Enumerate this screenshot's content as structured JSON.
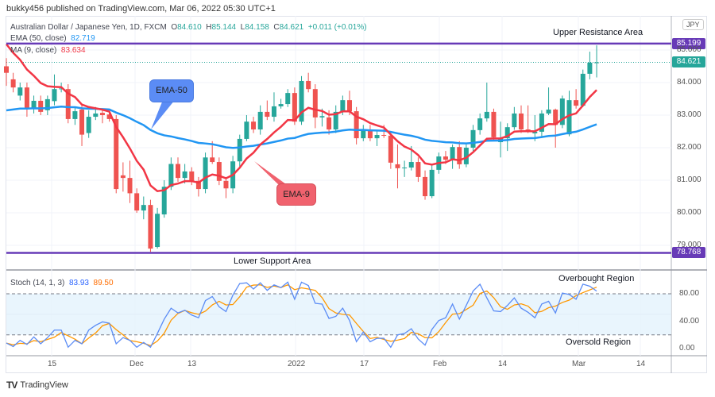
{
  "publisher_line": "bukky456 published on TradingView.com, Mar 06, 2022 05:30 UTC+1",
  "header": {
    "symbol": "Australian Dollar / Japanese Yen, 1D, FXCM",
    "o_label": "O",
    "o": "84.610",
    "h_label": "H",
    "h": "85.144",
    "l_label": "L",
    "l": "84.158",
    "c_label": "C",
    "c": "84.621",
    "change": "+0.011 (+0.01%)"
  },
  "indicators": {
    "ema": {
      "label": "EMA (50, close)",
      "value": "82.719",
      "color": "#2196f3"
    },
    "ma": {
      "label": "MA (9, close)",
      "value": "83.634",
      "color": "#f23645"
    },
    "stoch": {
      "label": "Stoch (14, 1, 3)",
      "k": "83.93",
      "d": "89.50",
      "k_color": "#2962ff",
      "d_color": "#ff6d00"
    }
  },
  "currency_button": "JPY",
  "price_axis": {
    "ticks": [
      "85.000",
      "84.000",
      "83.000",
      "82.000",
      "81.000",
      "80.000",
      "79.000"
    ],
    "tick_values": [
      85,
      84,
      83,
      82,
      81,
      80,
      79
    ],
    "resistance_tag": "85.199",
    "resistance_value": 85.199,
    "last_price_tag": "84.621",
    "last_price_value": 84.621,
    "support_tag": "78.768",
    "support_value": 78.768
  },
  "stoch_axis": {
    "ticks": [
      "80.00",
      "40.00",
      "0.00"
    ],
    "tick_values": [
      80,
      40,
      0
    ]
  },
  "time_axis": [
    "15",
    "Dec",
    "13",
    "2022",
    "17",
    "Feb",
    "14",
    "Mar",
    "14"
  ],
  "annotations": {
    "upper": "Upper Resistance Area",
    "lower": "Lower Support Area",
    "overbought": "Overbought Region",
    "oversold": "Oversold Region",
    "ema50_callout": "EMA-50",
    "ema9_callout": "EMA-9"
  },
  "colors": {
    "up": "#26a69a",
    "down": "#ef5350",
    "level": "#673ab7",
    "band": "#e3f2fd"
  },
  "chart_data": {
    "type": "candlestick",
    "ohlc_format": [
      "open",
      "high",
      "low",
      "close"
    ],
    "candles": [
      [
        84.5,
        84.75,
        83.9,
        84.3
      ],
      [
        84.1,
        84.3,
        83.7,
        83.85
      ],
      [
        83.6,
        84.0,
        83.45,
        83.85
      ],
      [
        83.85,
        84.0,
        82.95,
        83.2
      ],
      [
        83.2,
        83.6,
        83.05,
        83.44
      ],
      [
        83.44,
        83.6,
        83.0,
        83.1
      ],
      [
        83.15,
        83.6,
        83.0,
        83.49
      ],
      [
        83.43,
        84.25,
        83.3,
        83.8
      ],
      [
        83.8,
        84.0,
        83.7,
        83.82
      ],
      [
        83.8,
        83.95,
        82.75,
        82.88
      ],
      [
        82.88,
        83.25,
        82.7,
        83.12
      ],
      [
        83.17,
        83.3,
        82.05,
        82.4
      ],
      [
        82.45,
        83.15,
        82.3,
        82.95
      ],
      [
        82.95,
        83.25,
        82.85,
        83.05
      ],
      [
        83.07,
        83.2,
        82.75,
        83.0
      ],
      [
        83.02,
        83.1,
        82.8,
        82.88
      ],
      [
        82.88,
        83.0,
        80.6,
        80.73
      ],
      [
        81.15,
        81.55,
        80.65,
        81.07
      ],
      [
        81.07,
        81.6,
        80.3,
        80.6
      ],
      [
        80.6,
        80.75,
        80.0,
        80.07
      ],
      [
        80.07,
        80.5,
        79.8,
        80.24
      ],
      [
        80.24,
        80.4,
        78.8,
        78.9
      ],
      [
        78.95,
        80.15,
        78.9,
        79.97
      ],
      [
        79.95,
        81.0,
        79.85,
        80.8
      ],
      [
        80.8,
        81.7,
        80.7,
        81.5
      ],
      [
        81.5,
        81.7,
        80.95,
        81.07
      ],
      [
        81.07,
        81.5,
        80.9,
        81.27
      ],
      [
        81.27,
        81.4,
        80.85,
        80.98
      ],
      [
        80.98,
        81.1,
        80.5,
        80.73
      ],
      [
        80.73,
        81.85,
        80.6,
        81.7
      ],
      [
        81.7,
        82.2,
        81.5,
        81.56
      ],
      [
        81.56,
        81.7,
        80.85,
        80.98
      ],
      [
        80.98,
        81.1,
        80.45,
        80.75
      ],
      [
        80.75,
        81.75,
        80.6,
        81.58
      ],
      [
        81.58,
        82.4,
        81.4,
        82.27
      ],
      [
        82.27,
        83.0,
        82.2,
        82.8
      ],
      [
        82.8,
        82.95,
        82.45,
        82.56
      ],
      [
        82.56,
        83.3,
        82.4,
        83.1
      ],
      [
        83.1,
        83.45,
        82.85,
        82.95
      ],
      [
        82.95,
        83.7,
        82.8,
        83.27
      ],
      [
        83.27,
        83.5,
        83.2,
        83.34
      ],
      [
        83.34,
        83.8,
        83.25,
        83.68
      ],
      [
        83.68,
        83.85,
        82.7,
        82.8
      ],
      [
        82.8,
        84.2,
        82.7,
        84.05
      ],
      [
        84.05,
        84.3,
        83.7,
        83.8
      ],
      [
        83.8,
        83.95,
        82.6,
        82.93
      ],
      [
        82.93,
        83.2,
        82.65,
        82.97
      ],
      [
        82.93,
        83.15,
        82.4,
        82.56
      ],
      [
        82.56,
        83.3,
        82.45,
        83.1
      ],
      [
        83.1,
        83.6,
        83.0,
        83.46
      ],
      [
        83.46,
        83.75,
        83.0,
        83.12
      ],
      [
        83.12,
        83.25,
        82.1,
        82.29
      ],
      [
        82.29,
        82.7,
        82.2,
        82.56
      ],
      [
        82.56,
        82.7,
        82.2,
        82.29
      ],
      [
        82.29,
        82.5,
        82.05,
        82.39
      ],
      [
        82.39,
        82.7,
        82.3,
        82.37
      ],
      [
        82.37,
        82.45,
        81.35,
        81.54
      ],
      [
        81.49,
        82.1,
        80.75,
        81.37
      ],
      [
        81.37,
        81.6,
        81.1,
        81.39
      ],
      [
        81.39,
        82.05,
        81.3,
        81.56
      ],
      [
        81.56,
        81.7,
        80.95,
        81.1
      ],
      [
        81.1,
        81.3,
        80.4,
        80.51
      ],
      [
        80.51,
        81.45,
        80.45,
        81.32
      ],
      [
        81.32,
        81.85,
        81.2,
        81.73
      ],
      [
        81.73,
        81.9,
        81.5,
        81.63
      ],
      [
        81.63,
        82.1,
        81.35,
        82.02
      ],
      [
        82.02,
        82.2,
        81.35,
        81.49
      ],
      [
        81.49,
        82.1,
        81.4,
        82.0
      ],
      [
        82.0,
        82.7,
        81.9,
        82.54
      ],
      [
        82.54,
        83.05,
        82.4,
        82.9
      ],
      [
        82.9,
        84.0,
        82.8,
        83.1
      ],
      [
        83.1,
        83.2,
        82.2,
        82.32
      ],
      [
        82.17,
        82.8,
        81.7,
        82.29
      ],
      [
        82.29,
        82.75,
        81.9,
        82.63
      ],
      [
        82.63,
        83.25,
        82.55,
        83.05
      ],
      [
        83.05,
        83.3,
        82.45,
        82.56
      ],
      [
        82.56,
        83.3,
        82.45,
        82.51
      ],
      [
        82.44,
        83.0,
        82.2,
        82.49
      ],
      [
        82.49,
        83.15,
        82.3,
        83.05
      ],
      [
        83.05,
        83.85,
        83.0,
        83.17
      ],
      [
        83.17,
        83.2,
        82.0,
        82.7
      ],
      [
        82.7,
        83.6,
        82.6,
        83.51
      ],
      [
        82.41,
        83.75,
        82.35,
        83.46
      ],
      [
        83.46,
        83.8,
        83.2,
        83.29
      ],
      [
        83.29,
        84.4,
        83.25,
        84.27
      ],
      [
        84.27,
        84.95,
        84.1,
        84.61
      ],
      [
        84.61,
        85.144,
        84.158,
        84.621
      ]
    ],
    "stoch_k": [
      8,
      3,
      12,
      6,
      17,
      7,
      16,
      27,
      27,
      2,
      12,
      7,
      27,
      34,
      39,
      37,
      7,
      16,
      12,
      2,
      9,
      2,
      22,
      43,
      59,
      52,
      56,
      49,
      45,
      70,
      76,
      61,
      54,
      78,
      95,
      96,
      87,
      96,
      85,
      93,
      89,
      97,
      72,
      97,
      92,
      66,
      65,
      44,
      47,
      59,
      41,
      10,
      24,
      10,
      15,
      15,
      2,
      20,
      22,
      29,
      14,
      5,
      28,
      41,
      45,
      65,
      43,
      63,
      84,
      94,
      74,
      55,
      54,
      63,
      74,
      59,
      53,
      45,
      65,
      69,
      52,
      81,
      79,
      72,
      94,
      91,
      83.93
    ],
    "ema50_seed": 83.1,
    "ema9_seed": 85.4,
    "ylim": [
      78.5,
      85.5
    ],
    "stoch_levels": [
      80,
      20
    ]
  }
}
